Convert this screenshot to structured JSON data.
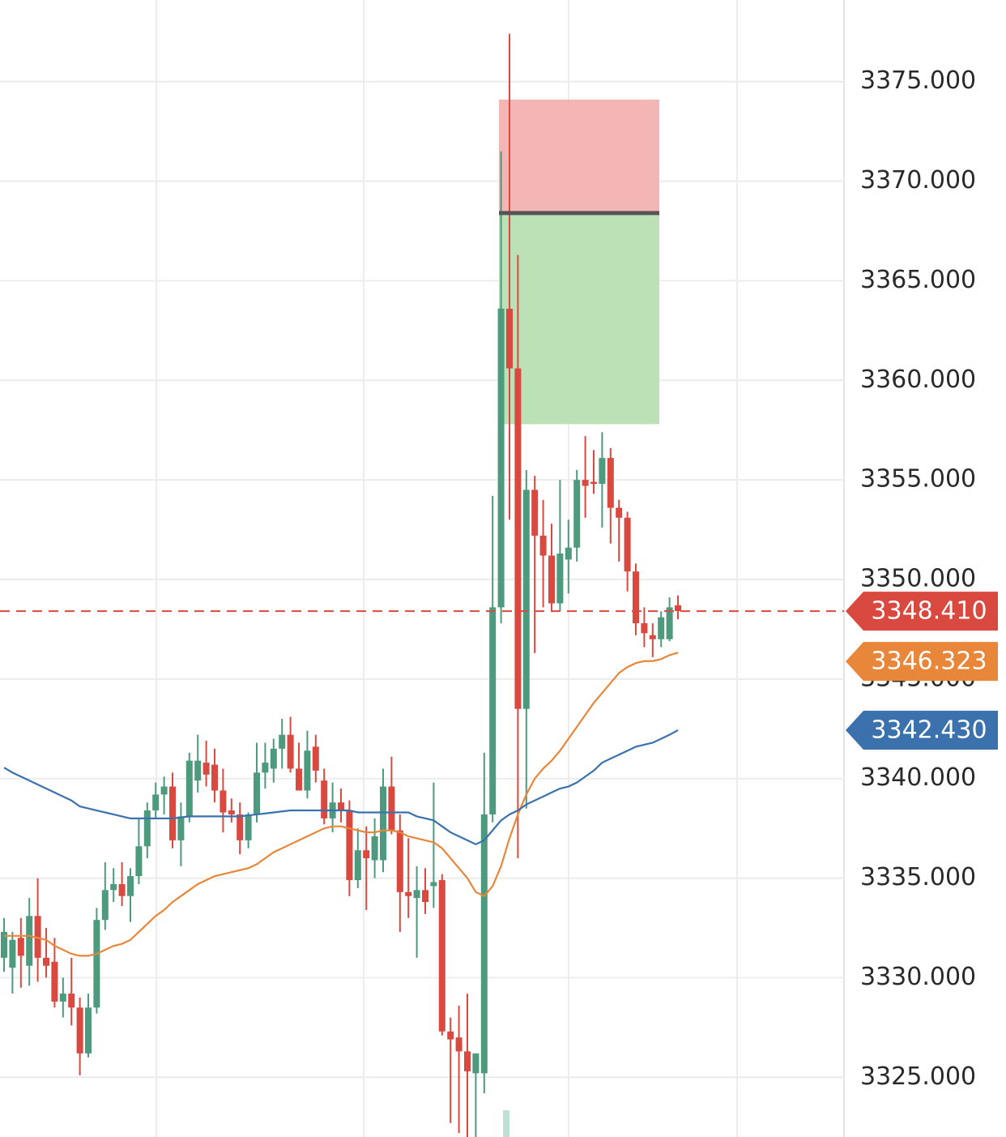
{
  "chart_data": {
    "type": "candlestick",
    "ylim": [
      3322,
      3379.1
    ],
    "yticks": [
      {
        "value": 3325,
        "label": "3325.000"
      },
      {
        "value": 3330,
        "label": "3330.000"
      },
      {
        "value": 3335,
        "label": "3335.000"
      },
      {
        "value": 3340,
        "label": "3340.000"
      },
      {
        "value": 3345,
        "label": "3345.000"
      },
      {
        "value": 3350,
        "label": "3350.000"
      },
      {
        "value": 3355,
        "label": "3355.000"
      },
      {
        "value": 3360,
        "label": "3360.000"
      },
      {
        "value": 3365,
        "label": "3365.000"
      },
      {
        "value": 3370,
        "label": "3370.000"
      },
      {
        "value": 3375,
        "label": "3375.000"
      }
    ],
    "grid": true,
    "candles": {
      "up_color": "#4e9a7f",
      "down_color": "#d9493f",
      "last_label": "3348.410",
      "open": [
        3331,
        3330.5,
        3332,
        3330.6,
        3333.1,
        3331,
        3330.8,
        3328.8,
        3329.2,
        3328.5,
        3326.2,
        3328.5,
        3332.9,
        3334.4,
        3334.7,
        3334.1,
        3335.1,
        3336.6,
        3338.4,
        3339.2,
        3339.6,
        3336.9,
        3338.1,
        3339.9,
        3340.8,
        3340.7,
        3339.4,
        3338.4,
        3338.2,
        3336.9,
        3338.2,
        3340.3,
        3340.5,
        3341.5,
        3342.2,
        3340.5,
        3339.4,
        3341.6,
        3339.9,
        3338,
        3338.8,
        3338.4,
        3334.9,
        3336.4,
        3335.9,
        3335.9,
        3339.6,
        3337.4,
        3334.3,
        3334,
        3334.4,
        3334.6,
        3334.9,
        3327.3,
        3327,
        3326.3,
        3325.2,
        3325.2,
        3338.2,
        3348.6,
        3363.6,
        3360.6,
        3343.5,
        3354.5,
        3352.2,
        3351.2,
        3348.8,
        3351,
        3351.6,
        3355,
        3354.9,
        3354.8,
        3356.1,
        3353.6,
        3353.1,
        3350.4,
        3347.8,
        3347.2,
        3347,
        3347,
        3348.7
      ],
      "high": [
        3333,
        3332.3,
        3333,
        3334,
        3335,
        3332.5,
        3332,
        3330,
        3331,
        3329,
        3329.2,
        3333.5,
        3335.8,
        3335.5,
        3335.8,
        3335.5,
        3338,
        3338.8,
        3339.8,
        3340.1,
        3340.3,
        3338.8,
        3341.3,
        3342.2,
        3341.9,
        3341.5,
        3340.5,
        3339,
        3338.8,
        3338.3,
        3341.8,
        3341.8,
        3342,
        3343,
        3343.1,
        3341.8,
        3342.4,
        3342.2,
        3340.5,
        3339.8,
        3339.5,
        3338.9,
        3337.5,
        3337.6,
        3338,
        3340.5,
        3341.1,
        3338.2,
        3337,
        3335.6,
        3335.5,
        3339.8,
        3335.2,
        3328,
        3328.6,
        3329.2,
        3326,
        3341.3,
        3354.2,
        3371.5,
        3377.4,
        3366.3,
        3355.5,
        3355.2,
        3354,
        3352.8,
        3355,
        3353,
        3355.5,
        3357.2,
        3356.5,
        3357.4,
        3356.6,
        3354,
        3353.4,
        3350.8,
        3348.6,
        3347.8,
        3348.4,
        3349.1,
        3349.2
      ],
      "low": [
        3330.3,
        3329.2,
        3329.5,
        3329.6,
        3329.8,
        3330,
        3328.5,
        3328,
        3327.6,
        3325.1,
        3326,
        3328.2,
        3332.4,
        3333.8,
        3333.6,
        3332.8,
        3334.7,
        3336,
        3338,
        3338.2,
        3336.5,
        3335.6,
        3337.8,
        3339.3,
        3339.6,
        3338.8,
        3337.3,
        3337.8,
        3336.2,
        3336.5,
        3337.8,
        3339.5,
        3339.8,
        3340.5,
        3340.3,
        3339.4,
        3339,
        3339.8,
        3337.7,
        3337.3,
        3337.8,
        3334.1,
        3334.5,
        3333.4,
        3335,
        3335.3,
        3337.2,
        3332.3,
        3333,
        3331,
        3333.2,
        3333.5,
        3327.1,
        3322.7,
        3322.2,
        3322,
        3322,
        3324.2,
        3337.8,
        3347.8,
        3353,
        3336,
        3338.5,
        3346.3,
        3348.6,
        3348.4,
        3348.4,
        3349.3,
        3350.9,
        3353.1,
        3354.3,
        3352.6,
        3351.8,
        3350.9,
        3349.4,
        3347.2,
        3346.6,
        3346.1,
        3346.6,
        3346.9,
        3348
      ],
      "close": [
        3332.3,
        3331.9,
        3331.1,
        3333.1,
        3331,
        3330.6,
        3328.8,
        3329.2,
        3328.5,
        3326.2,
        3328.5,
        3332.9,
        3334.4,
        3334.7,
        3334.1,
        3335.1,
        3336.6,
        3338.4,
        3339.2,
        3339.6,
        3336.9,
        3338.1,
        3340.9,
        3340.9,
        3340.2,
        3339.4,
        3338.3,
        3338.2,
        3336.9,
        3338.2,
        3340.3,
        3340.8,
        3341.5,
        3342.2,
        3340.5,
        3339.4,
        3341.4,
        3340.4,
        3338,
        3338.8,
        3338.4,
        3334.9,
        3336.4,
        3336,
        3337.1,
        3339.6,
        3337.4,
        3334.3,
        3334.1,
        3334.4,
        3333.8,
        3334.8,
        3327.3,
        3326.9,
        3326.3,
        3325.3,
        3326.2,
        3338.2,
        3348.6,
        3363.6,
        3360.6,
        3343.5,
        3354.5,
        3352.2,
        3351.2,
        3348.8,
        3351.3,
        3351.6,
        3355,
        3354.7,
        3354.8,
        3356.1,
        3353.6,
        3353.1,
        3350.4,
        3347.8,
        3347.3,
        3347,
        3348.1,
        3348.6,
        3348.41
      ]
    },
    "lines": [
      {
        "color": "#e8873a",
        "last_label": "3346.323",
        "values": [
          3332.1,
          3332.1,
          3332.1,
          3332.1,
          3332,
          3331.9,
          3331.6,
          3331.4,
          3331.2,
          3331.1,
          3331.1,
          3331.2,
          3331.4,
          3331.6,
          3331.7,
          3331.9,
          3332.3,
          3332.7,
          3333.1,
          3333.4,
          3333.8,
          3334.1,
          3334.4,
          3334.7,
          3334.9,
          3335.1,
          3335.2,
          3335.3,
          3335.4,
          3335.5,
          3335.7,
          3336,
          3336.3,
          3336.5,
          3336.7,
          3336.9,
          3337.1,
          3337.3,
          3337.5,
          3337.6,
          3337.6,
          3337.5,
          3337.4,
          3337.3,
          3337.3,
          3337.4,
          3337.4,
          3337.3,
          3337.1,
          3337,
          3336.9,
          3336.8,
          3336.5,
          3336,
          3335.5,
          3335,
          3334.3,
          3334.1,
          3334.6,
          3335.6,
          3337,
          3338.2,
          3339.2,
          3340,
          3340.5,
          3340.9,
          3341.4,
          3342,
          3342.6,
          3343.2,
          3343.8,
          3344.3,
          3344.8,
          3345.3,
          3345.6,
          3345.8,
          3345.9,
          3345.9,
          3346,
          3346.2,
          3346.323
        ]
      },
      {
        "color": "#3b72ae",
        "last_label": "3342.430",
        "values": [
          3340.55,
          3340.3,
          3340.1,
          3339.9,
          3339.7,
          3339.5,
          3339.3,
          3339.1,
          3338.9,
          3338.6,
          3338.5,
          3338.4,
          3338.3,
          3338.2,
          3338.1,
          3338,
          3338,
          3338,
          3338,
          3338,
          3338,
          3338.05,
          3338.1,
          3338.1,
          3338.1,
          3338.1,
          3338.1,
          3338.1,
          3338.1,
          3338.15,
          3338.2,
          3338.25,
          3338.3,
          3338.35,
          3338.4,
          3338.4,
          3338.4,
          3338.4,
          3338.4,
          3338.4,
          3338.4,
          3338.4,
          3338.3,
          3338.3,
          3338.3,
          3338.3,
          3338.3,
          3338.3,
          3338.3,
          3338.1,
          3338,
          3337.9,
          3337.6,
          3337.3,
          3337.1,
          3336.9,
          3336.7,
          3336.9,
          3337.4,
          3337.9,
          3338.2,
          3338.4,
          3338.7,
          3338.9,
          3339.1,
          3339.3,
          3339.5,
          3339.6,
          3339.8,
          3340.1,
          3340.4,
          3340.8,
          3341,
          3341.2,
          3341.4,
          3341.6,
          3341.7,
          3341.8,
          3342,
          3342.2,
          3342.43
        ]
      }
    ],
    "position": {
      "stop": 3374.1,
      "entry": 3368.4,
      "target": 3357.8,
      "stop_color": "#f4b5b5",
      "target_color": "#bde1b6",
      "entry_color": "#555555"
    }
  }
}
